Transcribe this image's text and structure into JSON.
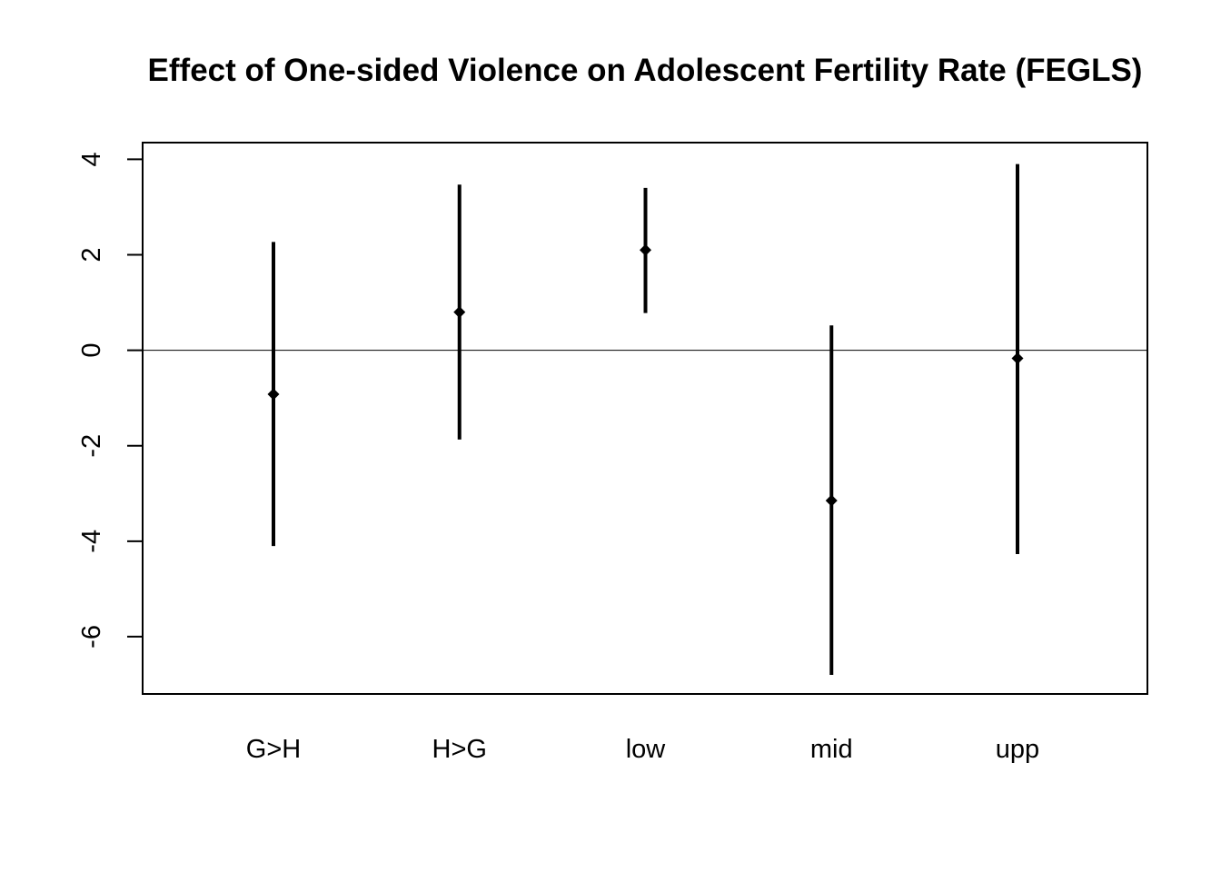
{
  "chart_data": {
    "type": "scatter",
    "title": "Effect of One-sided Violence on Adolescent Fertility Rate (FEGLS)",
    "xlabel": "",
    "ylabel": "",
    "categories": [
      "G>H",
      "H>G",
      "low",
      "mid",
      "upp"
    ],
    "estimates": [
      -0.92,
      0.8,
      2.1,
      -3.15,
      -0.17
    ],
    "lower": [
      -4.1,
      -1.87,
      0.78,
      -6.8,
      -4.27
    ],
    "upper": [
      2.27,
      3.47,
      3.4,
      0.52,
      3.9
    ],
    "yticks": [
      -6,
      -4,
      -2,
      0,
      2,
      4
    ],
    "ylim": [
      -7.2,
      4.35
    ],
    "reference_line": 0,
    "grid": false,
    "legend": "none"
  }
}
